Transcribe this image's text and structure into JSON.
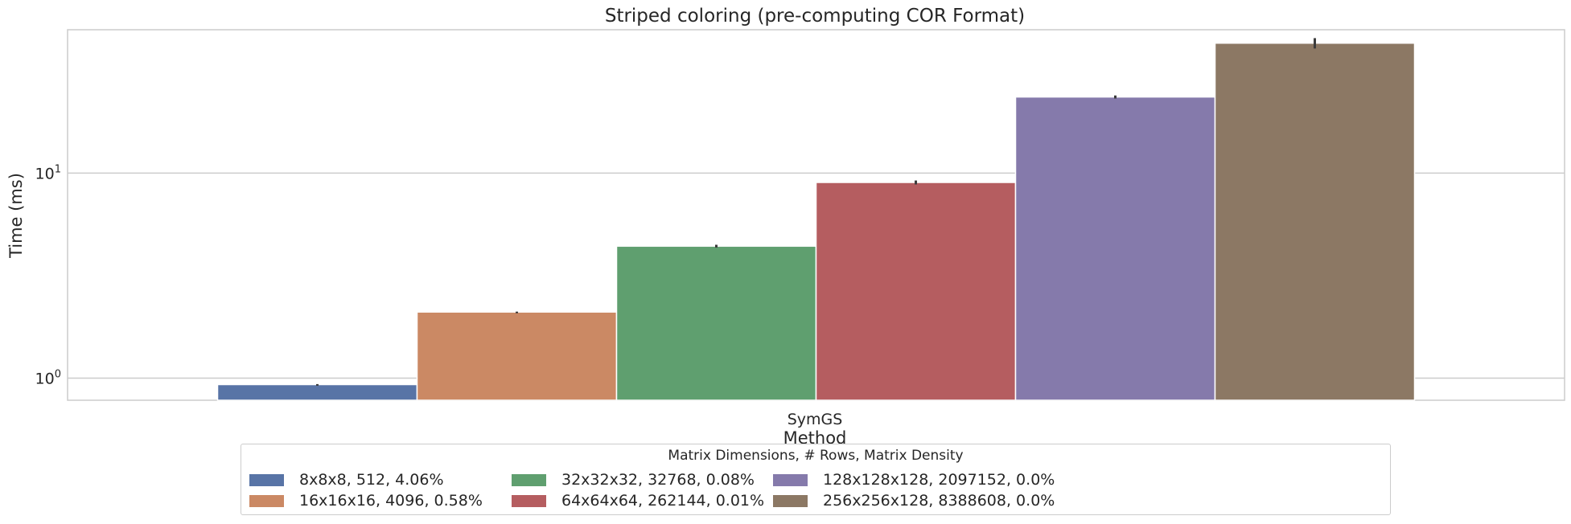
{
  "chart_data": {
    "type": "bar",
    "title": "Striped coloring (pre-computing COR Format)",
    "xlabel": "Method",
    "ylabel": "Time (ms)",
    "yscale": "log",
    "ylim": [
      0.78,
      50
    ],
    "yticks": [
      {
        "value": 1,
        "base": "10",
        "exp": "0"
      },
      {
        "value": 10,
        "base": "10",
        "exp": "1"
      }
    ],
    "grid": true,
    "categories": [
      "SymGS"
    ],
    "legend": {
      "title": "Matrix Dimensions, # Rows, Matrix Density",
      "placement": "bottom-center",
      "columns": 4
    },
    "series": [
      {
        "name": "8x8x8, 512, 4.06%",
        "values": [
          0.93
        ],
        "err": [
          0.005
        ],
        "color": "#5874a6"
      },
      {
        "name": "16x16x16, 4096, 0.58%",
        "values": [
          2.1
        ],
        "err": [
          0.01
        ],
        "color": "#cb8964"
      },
      {
        "name": "32x32x32, 32768, 0.08%",
        "values": [
          4.4
        ],
        "err": [
          0.07
        ],
        "color": "#5f9f6f"
      },
      {
        "name": "64x64x64, 262144, 0.01%",
        "values": [
          9.0
        ],
        "err": [
          0.2
        ],
        "color": "#b55d60"
      },
      {
        "name": "128x128x128, 2097152, 0.0%",
        "values": [
          23.5
        ],
        "err": [
          0.4
        ],
        "color": "#857aab"
      },
      {
        "name": "256x256x128, 8388608, 0.0%",
        "values": [
          43
        ],
        "err": [
          2.5
        ],
        "color": "#8c7864"
      }
    ]
  }
}
